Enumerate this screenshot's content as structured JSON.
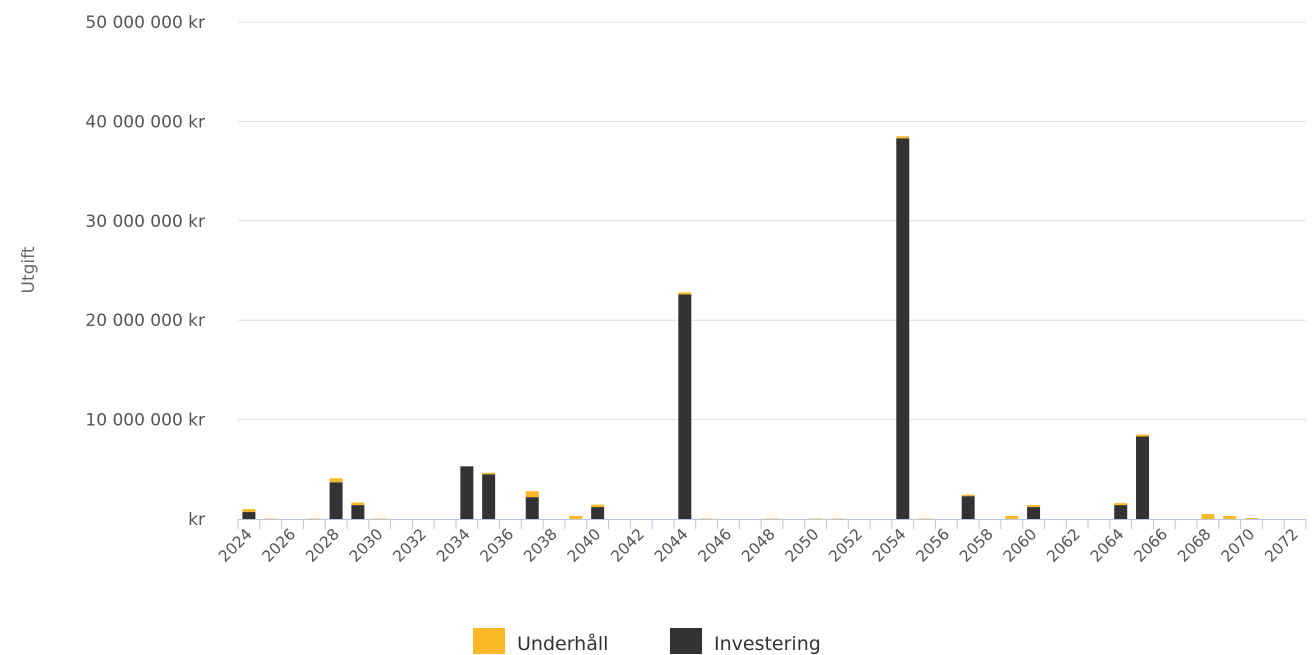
{
  "chart_data": {
    "type": "bar",
    "stacked": true,
    "ylabel": "Utgift",
    "xlabel": "",
    "ylim": [
      0,
      50000000
    ],
    "yticks": [
      0,
      10000000,
      20000000,
      30000000,
      40000000,
      50000000
    ],
    "ytick_labels": [
      "kr",
      "10 000 000 kr",
      "20 000 000 kr",
      "30 000 000 kr",
      "40 000 000 kr",
      "50 000 000 kr"
    ],
    "grid": true,
    "legend_position": "bottom",
    "categories": [
      "2024",
      "2025",
      "2026",
      "2027",
      "2028",
      "2029",
      "2030",
      "2031",
      "2032",
      "2033",
      "2034",
      "2035",
      "2036",
      "2037",
      "2038",
      "2039",
      "2040",
      "2041",
      "2042",
      "2043",
      "2044",
      "2045",
      "2046",
      "2047",
      "2048",
      "2049",
      "2050",
      "2051",
      "2052",
      "2053",
      "2054",
      "2055",
      "2056",
      "2057",
      "2058",
      "2059",
      "2060",
      "2061",
      "2062",
      "2063",
      "2064",
      "2065",
      "2066",
      "2067",
      "2068",
      "2069",
      "2070",
      "2071",
      "2072"
    ],
    "x_tick_labels": [
      "2024",
      "2026",
      "2028",
      "2030",
      "2032",
      "2034",
      "2036",
      "2038",
      "2040",
      "2042",
      "2044",
      "2046",
      "2048",
      "2050",
      "2052",
      "2054",
      "2056",
      "2058",
      "2060",
      "2062",
      "2064",
      "2066",
      "2068",
      "2070",
      "2072"
    ],
    "series": [
      {
        "name": "Investering",
        "color": "#333333",
        "values": [
          700000,
          0,
          0,
          0,
          3700000,
          1400000,
          0,
          0,
          0,
          0,
          5300000,
          4500000,
          0,
          2200000,
          0,
          0,
          1200000,
          0,
          0,
          0,
          22600000,
          0,
          0,
          0,
          0,
          0,
          0,
          0,
          0,
          0,
          38300000,
          0,
          0,
          2300000,
          0,
          0,
          1200000,
          0,
          0,
          0,
          1400000,
          8300000,
          0,
          0,
          0,
          0,
          0,
          0,
          0
        ]
      },
      {
        "name": "Underhåll",
        "color": "#fbb829",
        "values": [
          300000,
          50000,
          0,
          50000,
          400000,
          250000,
          50000,
          0,
          0,
          0,
          0,
          150000,
          0,
          600000,
          0,
          300000,
          250000,
          0,
          0,
          0,
          200000,
          50000,
          0,
          0,
          50000,
          0,
          50000,
          50000,
          0,
          0,
          200000,
          50000,
          0,
          150000,
          0,
          300000,
          200000,
          0,
          0,
          0,
          200000,
          200000,
          0,
          0,
          500000,
          300000,
          100000,
          0,
          0
        ]
      }
    ],
    "legend": [
      {
        "name": "Underhåll",
        "color": "#fbb829"
      },
      {
        "name": "Investering",
        "color": "#333333"
      }
    ]
  }
}
